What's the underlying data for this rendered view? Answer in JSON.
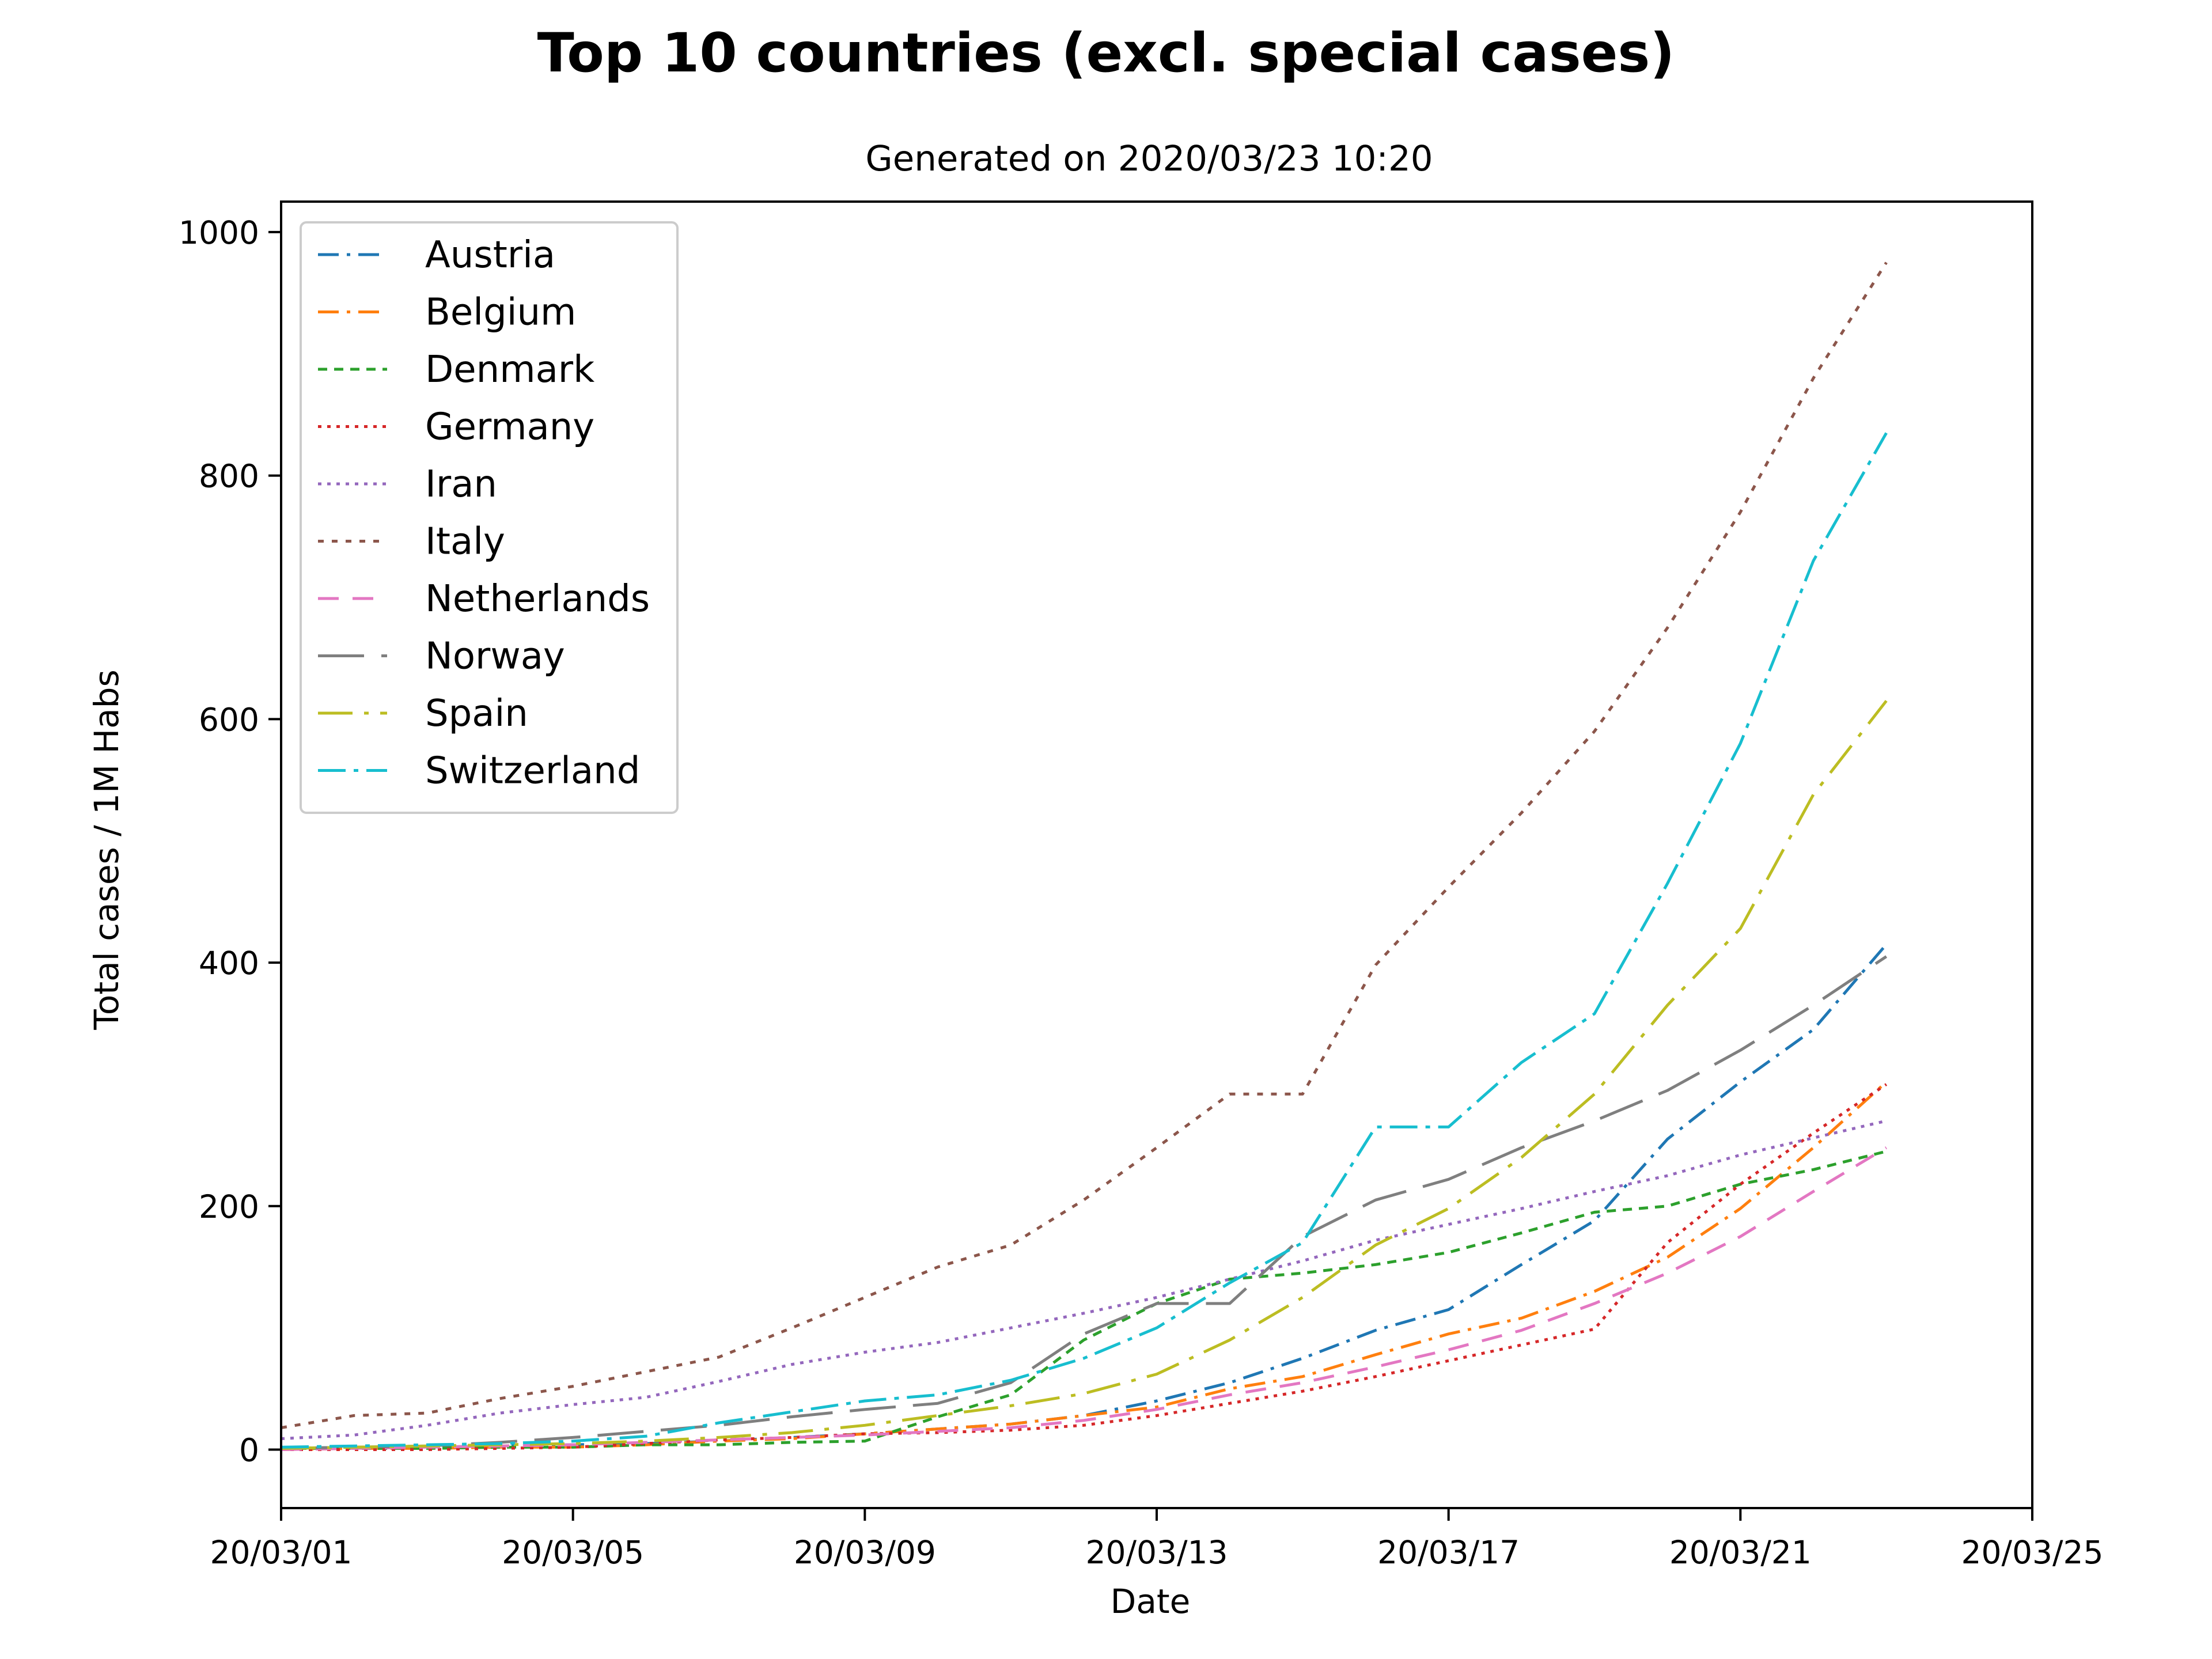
{
  "chart_data": {
    "type": "line",
    "title": "Top 10 countries (excl. special cases)",
    "subtitle": "Generated on 2020/03/23 10:20",
    "xlabel": "Date",
    "ylabel": "Total cases / 1M Habs",
    "x_tick_labels": [
      "20/03/01",
      "20/03/05",
      "20/03/09",
      "20/03/13",
      "20/03/17",
      "20/03/21",
      "20/03/25"
    ],
    "y_ticks": [
      0,
      200,
      400,
      600,
      800,
      1000
    ],
    "xlim": [
      "2020-03-01",
      "2020-03-25"
    ],
    "ylim": [
      -48,
      1025
    ],
    "grid": false,
    "legend_position": "upper-left",
    "x": [
      "2020-03-01",
      "2020-03-02",
      "2020-03-03",
      "2020-03-04",
      "2020-03-05",
      "2020-03-06",
      "2020-03-07",
      "2020-03-08",
      "2020-03-09",
      "2020-03-10",
      "2020-03-11",
      "2020-03-12",
      "2020-03-13",
      "2020-03-14",
      "2020-03-15",
      "2020-03-16",
      "2020-03-17",
      "2020-03-18",
      "2020-03-19",
      "2020-03-20",
      "2020-03-21",
      "2020-03-22",
      "2020-03-23"
    ],
    "series": [
      {
        "name": "Austria",
        "color": "#1f77b4",
        "dash": "36,14,6,14",
        "values": [
          1,
          2,
          2,
          3,
          4,
          5,
          7,
          10,
          13,
          17,
          21,
          28,
          40,
          55,
          75,
          98,
          115,
          152,
          188,
          255,
          302,
          345,
          415
        ]
      },
      {
        "name": "Belgium",
        "color": "#ff7f0e",
        "dash": "36,14,6,14",
        "values": [
          0,
          1,
          1,
          2,
          2,
          4,
          7,
          9,
          13,
          17,
          21,
          28,
          35,
          50,
          60,
          78,
          95,
          108,
          130,
          158,
          198,
          248,
          302
        ]
      },
      {
        "name": "Denmark",
        "color": "#2ca02c",
        "dash": "16,12",
        "values": [
          1,
          1,
          1,
          2,
          2,
          4,
          4,
          6,
          7,
          27,
          45,
          90,
          120,
          140,
          145,
          152,
          162,
          178,
          195,
          200,
          218,
          230,
          245
        ]
      },
      {
        "name": "Germany",
        "color": "#d62728",
        "dash": "6,10",
        "values": [
          0,
          0,
          0,
          1,
          2,
          5,
          8,
          10,
          13,
          14,
          16,
          20,
          28,
          38,
          48,
          60,
          73,
          86,
          99,
          170,
          218,
          260,
          300
        ]
      },
      {
        "name": "Iran",
        "color": "#9467bd",
        "dash": "6,10",
        "values": [
          9,
          12,
          20,
          30,
          37,
          43,
          56,
          70,
          80,
          88,
          100,
          112,
          125,
          140,
          155,
          172,
          185,
          198,
          212,
          225,
          242,
          256,
          270
        ]
      },
      {
        "name": "Italy",
        "color": "#8c564b",
        "dash": "10,14",
        "values": [
          18,
          28,
          30,
          42,
          52,
          64,
          76,
          100,
          125,
          150,
          168,
          205,
          248,
          292,
          292,
          398,
          462,
          523,
          590,
          675,
          770,
          880,
          975
        ]
      },
      {
        "name": "Netherlands",
        "color": "#e377c2",
        "dash": "36,24",
        "values": [
          0,
          1,
          2,
          3,
          4,
          6,
          8,
          10,
          12,
          15,
          18,
          24,
          33,
          45,
          55,
          68,
          82,
          98,
          120,
          145,
          175,
          212,
          248
        ]
      },
      {
        "name": "Norway",
        "color": "#7f7f7f",
        "dash": "80,30",
        "values": [
          1,
          2,
          3,
          6,
          10,
          15,
          20,
          27,
          33,
          38,
          55,
          95,
          120,
          120,
          175,
          205,
          222,
          248,
          270,
          295,
          328,
          365,
          405
        ]
      },
      {
        "name": "Spain",
        "color": "#bcbd22",
        "dash": "60,20,8,20",
        "values": [
          1,
          2,
          3,
          4,
          5,
          7,
          10,
          14,
          20,
          28,
          36,
          46,
          62,
          90,
          125,
          168,
          198,
          240,
          292,
          365,
          428,
          538,
          615
        ]
      },
      {
        "name": "Switzerland",
        "color": "#17becf",
        "dash": "48,14,8,14",
        "values": [
          2,
          3,
          4,
          5,
          7,
          11,
          22,
          31,
          40,
          45,
          57,
          75,
          100,
          137,
          170,
          265,
          265,
          318,
          358,
          465,
          580,
          730,
          835
        ]
      }
    ]
  }
}
